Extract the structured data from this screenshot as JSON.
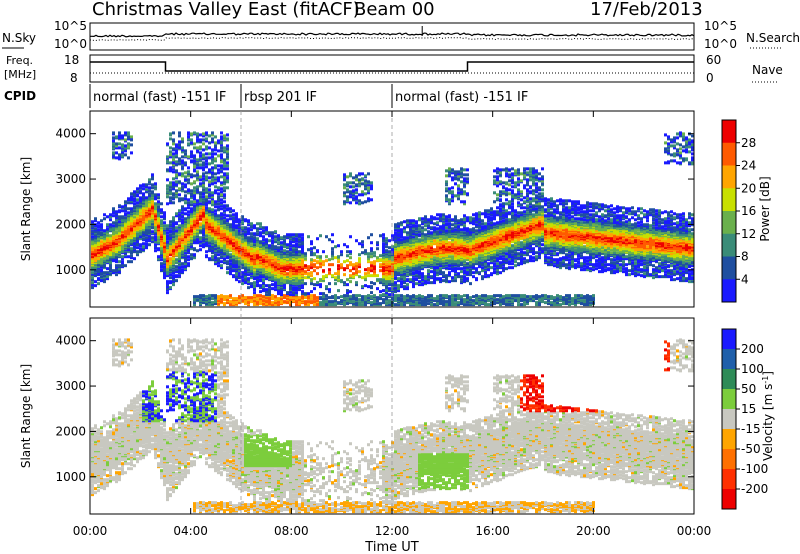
{
  "header": {
    "title": "Christmas Valley East (fitACF)",
    "beam": "Beam 00",
    "date": "17/Feb/2013"
  },
  "side_labels": {
    "nsky": "N.Sky",
    "nsearch": "N.Search",
    "freq_line1": "Freq.",
    "freq_line2": "[MHz]",
    "nave": "Nave",
    "cpid": "CPID"
  },
  "nsky_axis": {
    "top": "10^5",
    "bottom": "10^0"
  },
  "freq_axis": {
    "left_top": "18",
    "left_bottom": "8",
    "right_top": "60",
    "right_bottom": "0"
  },
  "cpid_segments": [
    {
      "label": "normal (fast) -151 IF",
      "start_h": 0,
      "end_h": 6
    },
    {
      "label": "rbsp 201 IF",
      "start_h": 6,
      "end_h": 12
    },
    {
      "label": "normal (fast) -151 IF",
      "start_h": 12,
      "end_h": 24
    }
  ],
  "freq_steps": {
    "high_before_h": 3,
    "high_after_h": 15
  },
  "x_axis": {
    "label": "Time UT",
    "ticks": [
      "00:00",
      "04:00",
      "08:00",
      "12:00",
      "16:00",
      "20:00",
      "00:00"
    ]
  },
  "power_panel": {
    "ylabel": "Slant Range [km]",
    "yticks": [
      "1000",
      "2000",
      "3000",
      "4000"
    ],
    "colorbar_label": "Power [dB]",
    "colorbar_ticks": [
      "4",
      "8",
      "12",
      "16",
      "20",
      "24",
      "28"
    ],
    "colors": [
      "#1a1aff",
      "#1f4fa0",
      "#3a8c78",
      "#6ab04c",
      "#c8e000",
      "#ffa500",
      "#ff5a00",
      "#ee0000"
    ]
  },
  "velocity_panel": {
    "ylabel": "Slant Range [km]",
    "yticks": [
      "1000",
      "2000",
      "3000",
      "4000"
    ],
    "colorbar_label": "Velocity [m s^-1]",
    "colorbar_ticks": [
      "200",
      "100",
      "50",
      "15",
      "-15",
      "-50",
      "-100",
      "-200"
    ],
    "colors": [
      "#1a1aff",
      "#1f5faa",
      "#2e8b57",
      "#7ccd3c",
      "#c8c8c0",
      "#ffa500",
      "#ff7000",
      "#ff3000",
      "#ee0000"
    ]
  },
  "chart_data": {
    "type": "heatmap",
    "x_range_hours": [
      0,
      24
    ],
    "y_range_km": [
      180,
      4500
    ],
    "x": "Time UT",
    "y": "Slant Range [km]",
    "panels": [
      "Power [dB]",
      "Velocity [m s^-1]"
    ]
  }
}
